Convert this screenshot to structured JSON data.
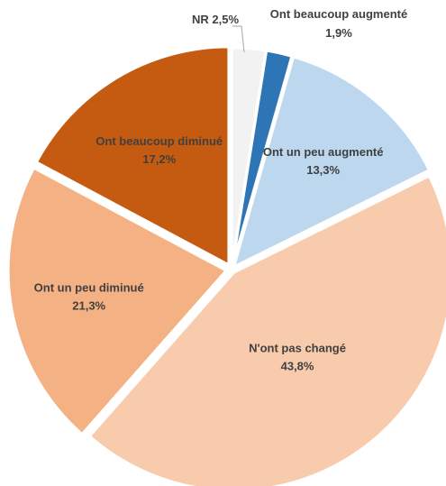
{
  "chart_data": {
    "type": "pie",
    "start_angle_deg": 0,
    "direction": "clockwise",
    "slices": [
      {
        "label": "NR",
        "value": 2.5,
        "value_text": "2,5%",
        "color": "#F2F2F2",
        "label_style": "outside-inline"
      },
      {
        "label": "Ont beaucoup augmenté",
        "value": 1.9,
        "value_text": "1,9%",
        "color": "#2E75B6",
        "label_style": "outside-stacked"
      },
      {
        "label": "Ont un peu augmenté",
        "value": 13.3,
        "value_text": "13,3%",
        "color": "#BDD7EE",
        "label_style": "inside"
      },
      {
        "label": "N'ont pas changé",
        "value": 43.8,
        "value_text": "43,8%",
        "color": "#F8CBAD",
        "label_style": "inside"
      },
      {
        "label": "Ont un peu diminué",
        "value": 21.3,
        "value_text": "21,3%",
        "color": "#F4B183",
        "label_style": "inside"
      },
      {
        "label": "Ont beaucoup diminué",
        "value": 17.2,
        "value_text": "17,2%",
        "color": "#C55A11",
        "label_style": "inside"
      }
    ],
    "legend": "none"
  }
}
